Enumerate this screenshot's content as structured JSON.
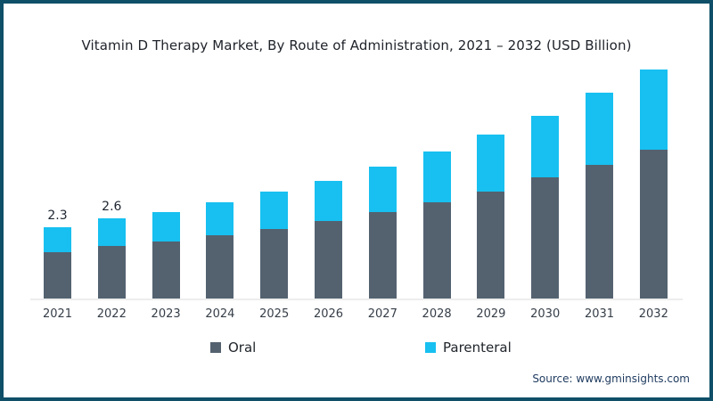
{
  "footer": {
    "source": "Source: www.gminsights.com"
  },
  "frame": {
    "border_color": "#0F4F68",
    "background": "#FFFFFF"
  },
  "chart_data": {
    "type": "bar",
    "stacked": true,
    "title": "Vitamin D Therapy Market, By Route of Administration, 2021 – 2032 (USD Billion)",
    "unit": "USD Billion",
    "categories": [
      "2021",
      "2022",
      "2023",
      "2024",
      "2025",
      "2026",
      "2027",
      "2028",
      "2029",
      "2030",
      "2031",
      "2032"
    ],
    "series": [
      {
        "name": "Oral",
        "color": "#546270",
        "values": [
          1.5,
          1.7,
          1.85,
          2.05,
          2.25,
          2.5,
          2.8,
          3.1,
          3.45,
          3.9,
          4.3,
          4.8
        ]
      },
      {
        "name": "Parenteral",
        "color": "#17C0F0",
        "values": [
          0.8,
          0.9,
          0.95,
          1.05,
          1.2,
          1.3,
          1.45,
          1.65,
          1.85,
          2.0,
          2.35,
          2.6
        ]
      }
    ],
    "totals": [
      2.3,
      2.6,
      2.8,
      3.1,
      3.45,
      3.8,
      4.25,
      4.75,
      5.3,
      5.9,
      6.65,
      7.4
    ],
    "total_labels": [
      "2.3",
      "2.6",
      "",
      "",
      "",
      "",
      "",
      "",
      "",
      "",
      "",
      ""
    ],
    "ylim": [
      0,
      7.5
    ],
    "grid": false,
    "y_axis_visible": false,
    "legend_position": "bottom",
    "axis_line_color": "#EDEDED"
  }
}
